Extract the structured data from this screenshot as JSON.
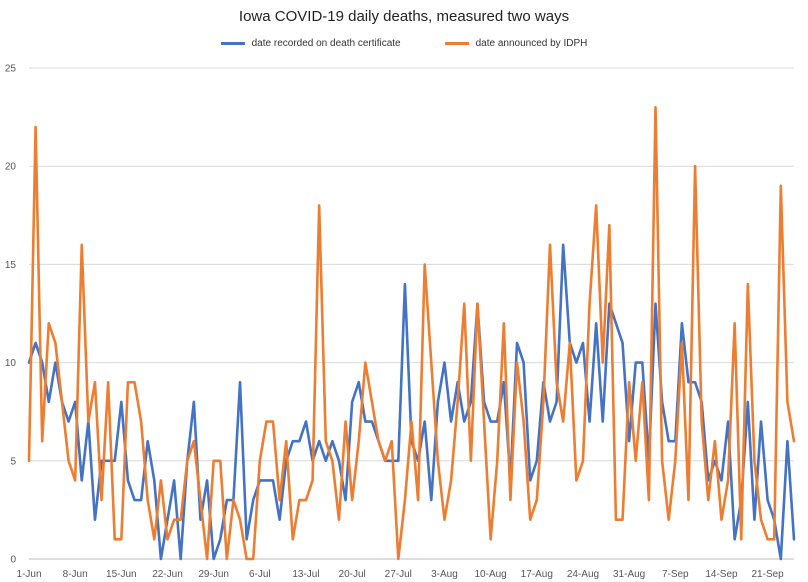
{
  "chart_data": {
    "type": "line",
    "title": "Iowa COVID-19 daily deaths, measured two ways",
    "xlabel": "",
    "ylabel": "",
    "ylim": [
      0,
      25
    ],
    "yticks": [
      0,
      5,
      10,
      15,
      20,
      25
    ],
    "grid": "horizontal",
    "legend_position": "top",
    "x_tick_labels": [
      "1-Jun",
      "8-Jun",
      "15-Jun",
      "22-Jun",
      "29-Jun",
      "6-Jul",
      "13-Jul",
      "20-Jul",
      "27-Jul",
      "3-Aug",
      "10-Aug",
      "17-Aug",
      "24-Aug",
      "31-Aug",
      "7-Sep",
      "14-Sep",
      "21-Sep"
    ],
    "x_start": "1-Jun",
    "x_end": "23-Sep",
    "series": [
      {
        "name": "date recorded on death certificate",
        "color": "#4472C4",
        "values": [
          10,
          11,
          10,
          8,
          10,
          8,
          7,
          8,
          4,
          7,
          2,
          5,
          5,
          5,
          8,
          4,
          3,
          3,
          6,
          4,
          0,
          2,
          4,
          0,
          5,
          8,
          2,
          4,
          0,
          1,
          3,
          3,
          9,
          1,
          3,
          4,
          4,
          4,
          2,
          5,
          6,
          6,
          7,
          5,
          6,
          5,
          6,
          5,
          3,
          8,
          9,
          7,
          7,
          6,
          5,
          5,
          5,
          14,
          6,
          5,
          7,
          3,
          8,
          10,
          7,
          9,
          7,
          8,
          13,
          8,
          7,
          7,
          9,
          4,
          11,
          10,
          4,
          5,
          9,
          7,
          8,
          16,
          11,
          10,
          11,
          7,
          12,
          7,
          13,
          12,
          11,
          6,
          10,
          10,
          5,
          13,
          8,
          6,
          6,
          12,
          9,
          9,
          8,
          4,
          5,
          4,
          7,
          1,
          3,
          8,
          2,
          7,
          3,
          2,
          0,
          6,
          1
        ]
      },
      {
        "name": "date announced by IDPH",
        "color": "#ED7D31",
        "values": [
          5,
          22,
          6,
          12,
          11,
          8,
          5,
          4,
          16,
          7,
          9,
          3,
          9,
          1,
          1,
          9,
          9,
          7,
          3,
          1,
          4,
          1,
          2,
          2,
          5,
          6,
          3,
          0,
          5,
          5,
          0,
          3,
          2,
          0,
          0,
          5,
          7,
          7,
          3,
          6,
          1,
          3,
          3,
          4,
          18,
          6,
          5,
          2,
          7,
          3,
          6,
          10,
          8,
          6,
          5,
          6,
          0,
          3,
          7,
          3,
          15,
          10,
          5,
          2,
          4,
          8,
          13,
          5,
          13,
          7,
          1,
          5,
          12,
          3,
          10,
          7,
          2,
          3,
          8,
          16,
          9,
          7,
          11,
          4,
          5,
          13,
          18,
          10,
          17,
          2,
          2,
          9,
          5,
          9,
          3,
          23,
          5,
          2,
          5,
          11,
          3,
          20,
          7,
          3,
          6,
          2,
          4,
          12,
          1,
          14,
          5,
          2,
          1,
          1,
          19,
          8,
          6
        ]
      }
    ]
  }
}
